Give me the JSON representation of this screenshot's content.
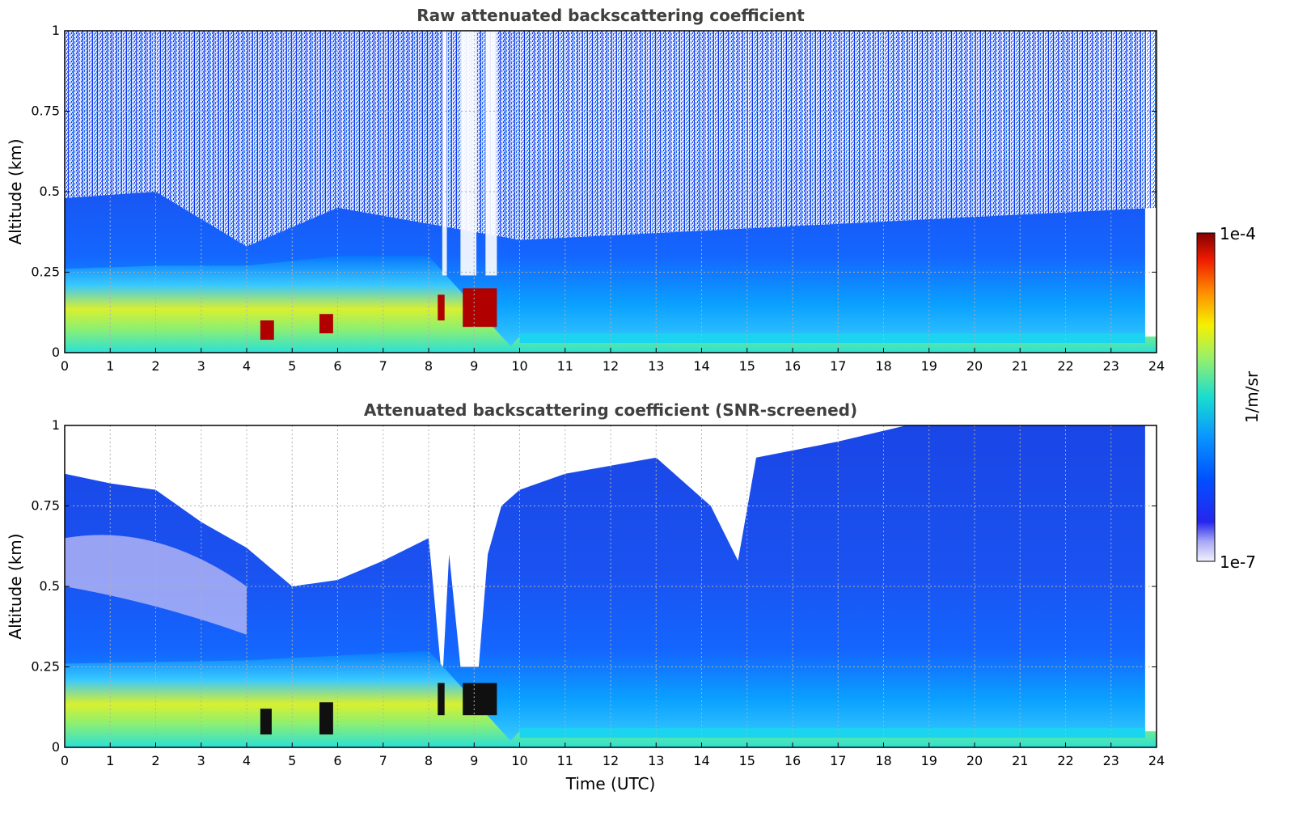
{
  "chart_data": [
    {
      "type": "heatmap",
      "title": "Raw attenuated backscattering coefficient",
      "ylabel": "Altitude (km)",
      "xlabel": "",
      "xlim": [
        0,
        24
      ],
      "ylim": [
        0,
        1
      ],
      "x_ticks": [
        "0",
        "1",
        "2",
        "3",
        "4",
        "5",
        "6",
        "7",
        "8",
        "9",
        "10",
        "11",
        "12",
        "13",
        "14",
        "15",
        "16",
        "17",
        "18",
        "19",
        "20",
        "21",
        "22",
        "23",
        "24"
      ],
      "y_ticks": [
        {
          "value": 0,
          "label": "0"
        },
        {
          "value": 0.25,
          "label": "0.25"
        },
        {
          "value": 0.5,
          "label": "0.5"
        },
        {
          "value": 0.75,
          "label": "0.75"
        },
        {
          "value": 1,
          "label": "1"
        }
      ],
      "grid": true,
      "data_end_hour": 23.75,
      "features": {
        "aerosol_layer_top_km": [
          [
            0,
            0.26
          ],
          [
            2,
            0.27
          ],
          [
            4,
            0.27
          ],
          [
            6,
            0.3
          ],
          [
            8,
            0.3
          ],
          [
            9.8,
            0.02
          ],
          [
            10,
            0.05
          ],
          [
            24,
            0.05
          ]
        ],
        "noise_region_top_km": [
          [
            0,
            0.48
          ],
          [
            2,
            0.5
          ],
          [
            4,
            0.33
          ],
          [
            6,
            0.45
          ],
          [
            8,
            0.4
          ],
          [
            10,
            0.35
          ],
          [
            24,
            0.45
          ]
        ],
        "strong_layer_bands": [
          {
            "t_start": 4.3,
            "t_end": 4.6,
            "alt_low": 0.04,
            "alt_high": 0.1
          },
          {
            "t_start": 5.6,
            "t_end": 5.9,
            "alt_low": 0.06,
            "alt_high": 0.12
          },
          {
            "t_start": 8.2,
            "t_end": 8.35,
            "alt_low": 0.1,
            "alt_high": 0.18
          },
          {
            "t_start": 8.75,
            "t_end": 9.5,
            "alt_low": 0.08,
            "alt_high": 0.2
          }
        ],
        "signal_gaps": [
          {
            "t_start": 8.3,
            "t_end": 8.4
          },
          {
            "t_start": 8.7,
            "t_end": 9.05
          },
          {
            "t_start": 9.25,
            "t_end": 9.5
          }
        ]
      }
    },
    {
      "type": "heatmap",
      "title": "Attenuated backscattering coefficient (SNR-screened)",
      "ylabel": "Altitude (km)",
      "xlabel": "Time (UTC)",
      "xlim": [
        0,
        24
      ],
      "ylim": [
        0,
        1
      ],
      "x_ticks": [
        "0",
        "1",
        "2",
        "3",
        "4",
        "5",
        "6",
        "7",
        "8",
        "9",
        "10",
        "11",
        "12",
        "13",
        "14",
        "15",
        "16",
        "17",
        "18",
        "19",
        "20",
        "21",
        "22",
        "23",
        "24"
      ],
      "y_ticks": [
        {
          "value": 0,
          "label": "0"
        },
        {
          "value": 0.25,
          "label": "0.25"
        },
        {
          "value": 0.5,
          "label": "0.5"
        },
        {
          "value": 0.75,
          "label": "0.75"
        },
        {
          "value": 1,
          "label": "1"
        }
      ],
      "grid": true,
      "data_end_hour": 23.75,
      "screened_top_km": [
        [
          0,
          0.85
        ],
        [
          1,
          0.82
        ],
        [
          2,
          0.8
        ],
        [
          3,
          0.7
        ],
        [
          4,
          0.62
        ],
        [
          5,
          0.5
        ],
        [
          6,
          0.52
        ],
        [
          7,
          0.58
        ],
        [
          8,
          0.65
        ],
        [
          8.3,
          0.2
        ],
        [
          8.45,
          0.6
        ],
        [
          8.7,
          0.25
        ],
        [
          9.1,
          0.25
        ],
        [
          9.3,
          0.6
        ],
        [
          9.6,
          0.75
        ],
        [
          10,
          0.8
        ],
        [
          11,
          0.85
        ],
        [
          13,
          0.9
        ],
        [
          14.2,
          0.75
        ],
        [
          14.8,
          0.58
        ],
        [
          15.2,
          0.9
        ],
        [
          17,
          0.95
        ],
        [
          18.5,
          1.0
        ],
        [
          24,
          1.0
        ]
      ]
    }
  ],
  "colorbar": {
    "label": "1/m/sr",
    "max_label": "1e-4",
    "min_label": "1e-7"
  }
}
